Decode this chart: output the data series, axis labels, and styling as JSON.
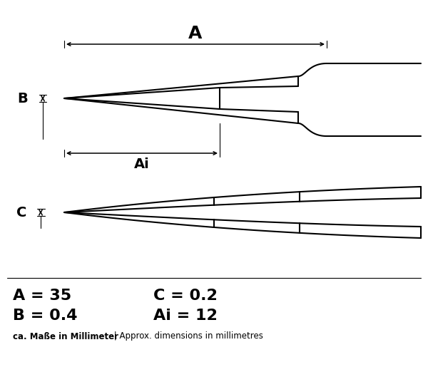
{
  "title": "",
  "A_val": "35",
  "B_val": "0.4",
  "C_val": "0.2",
  "Ai_val": "12",
  "unit_label": "ca. Maße in Millimeter",
  "unit_label2": "Approx. dimensions in millimetres",
  "bg_color": "#ffffff",
  "line_color": "#000000",
  "text_color": "#000000",
  "lw_main": 1.5,
  "lw_dim": 1.1,
  "lw_thin": 0.8
}
